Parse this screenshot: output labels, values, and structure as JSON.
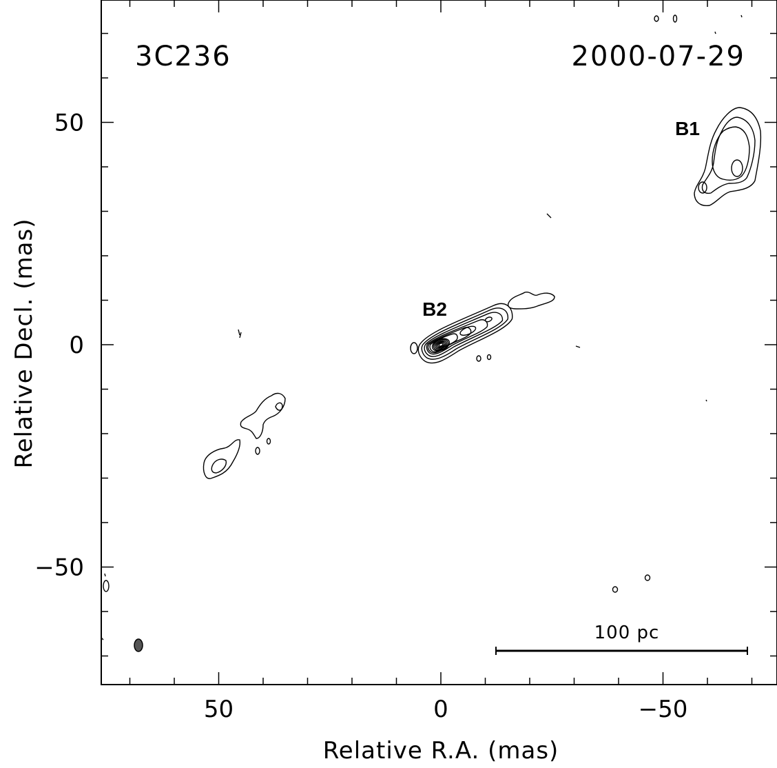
{
  "chart_data": {
    "type": "contour",
    "object": "3C236",
    "date": "2000-07-29",
    "xlabel": "Relative R.A. (mas)",
    "ylabel": "Relative Decl. (mas)",
    "x_ticks": [
      {
        "value": 50,
        "label": "50"
      },
      {
        "value": 0,
        "label": "0"
      },
      {
        "value": -50,
        "label": "−50"
      }
    ],
    "y_ticks": [
      {
        "value": 50,
        "label": "50"
      },
      {
        "value": 0,
        "label": "0"
      },
      {
        "value": -50,
        "label": "−50"
      }
    ],
    "xlim": [
      77,
      -75
    ],
    "ylim": [
      -77,
      77
    ],
    "x_reversed": true,
    "components": [
      {
        "name": "B1",
        "ra": -65,
        "dec": 40
      },
      {
        "name": "B2",
        "ra": 0,
        "dec": 0
      }
    ],
    "scale_bar": {
      "label": "100 pc",
      "ra_start": -12,
      "ra_end": -69,
      "dec": -69
    },
    "beam": {
      "ra": 69,
      "dec": -68
    }
  }
}
